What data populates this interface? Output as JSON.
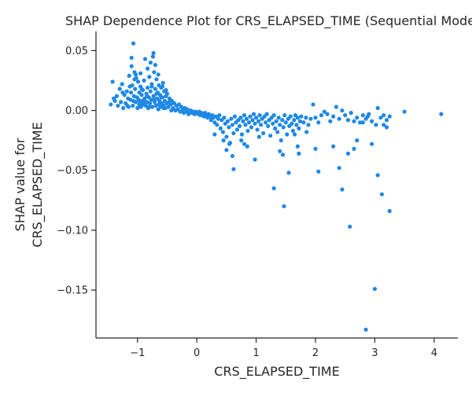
{
  "chart_data": {
    "type": "scatter",
    "title": "SHAP Dependence Plot for CRS_ELAPSED_TIME (Sequential Model)",
    "xlabel": "CRS_ELAPSED_TIME",
    "ylabel_lines": [
      "SHAP value for",
      "CRS_ELAPSED_TIME"
    ],
    "xlim": [
      -1.7,
      4.4
    ],
    "ylim": [
      -0.19,
      0.066
    ],
    "x_ticks": [
      -1,
      0,
      1,
      2,
      3,
      4
    ],
    "x_tick_labels": [
      "−1",
      "0",
      "1",
      "2",
      "3",
      "4"
    ],
    "y_ticks": [
      0.05,
      0.0,
      -0.05,
      -0.1,
      -0.15
    ],
    "y_tick_labels": [
      "0.05",
      "0.00",
      "−0.05",
      "−0.10",
      "−0.15"
    ],
    "grid": false,
    "legend": "none",
    "point_color": "#1e88e5",
    "points": [
      [
        -1.45,
        0.005
      ],
      [
        -1.42,
        0.024
      ],
      [
        -1.38,
        0.008
      ],
      [
        -1.35,
        0.012
      ],
      [
        -1.33,
        0.004
      ],
      [
        -1.3,
        0.018
      ],
      [
        -1.28,
        0.007
      ],
      [
        -1.26,
        0.022
      ],
      [
        -1.24,
        0.002
      ],
      [
        -1.22,
        0.013
      ],
      [
        -1.2,
        0.006
      ],
      [
        -1.18,
        0.016
      ],
      [
        -1.16,
        0.01
      ],
      [
        -1.15,
        0.003
      ],
      [
        -1.14,
        0.029
      ],
      [
        -1.12,
        0.009
      ],
      [
        -1.11,
        0.015
      ],
      [
        -1.1,
        0.037
      ],
      [
        -1.09,
        0.021
      ],
      [
        -1.08,
        0.004
      ],
      [
        -1.07,
        0.056
      ],
      [
        -1.06,
        0.012
      ],
      [
        -1.05,
        0.032
      ],
      [
        -1.04,
        0.018
      ],
      [
        -1.03,
        0.007
      ],
      [
        -1.02,
        0.027
      ],
      [
        -1.01,
        0.011
      ],
      [
        -1.0,
        0.002
      ],
      [
        -0.99,
        0.024
      ],
      [
        -0.98,
        0.009
      ],
      [
        -0.97,
        0.015
      ],
      [
        -0.96,
        0.006
      ],
      [
        -0.95,
        0.02
      ],
      [
        -0.94,
        0.003
      ],
      [
        -0.93,
        0.013
      ],
      [
        -0.92,
        0.008
      ],
      [
        -0.91,
        0.017
      ],
      [
        -0.9,
        0.005
      ],
      [
        -0.89,
        0.025
      ],
      [
        -0.88,
        0.01
      ],
      [
        -0.87,
        0.043
      ],
      [
        -0.86,
        0.004
      ],
      [
        -0.85,
        0.014
      ],
      [
        -0.84,
        0.007
      ],
      [
        -0.83,
        0.019
      ],
      [
        -0.82,
        0.002
      ],
      [
        -0.81,
        0.011
      ],
      [
        -0.8,
        0.028
      ],
      [
        -0.79,
        0.006
      ],
      [
        -0.78,
        0.016
      ],
      [
        -0.77,
        0.009
      ],
      [
        -0.76,
        0.022
      ],
      [
        -0.75,
        0.003
      ],
      [
        -0.74,
        0.045
      ],
      [
        -0.73,
        0.012
      ],
      [
        -0.72,
        0.032
      ],
      [
        -0.71,
        0.007
      ],
      [
        -0.7,
        0.018
      ],
      [
        -0.69,
        0.004
      ],
      [
        -0.68,
        0.026
      ],
      [
        -0.67,
        0.01
      ],
      [
        -0.66,
        0.015
      ],
      [
        -0.65,
        0.001
      ],
      [
        -0.64,
        0.021
      ],
      [
        -0.63,
        0.008
      ],
      [
        -0.62,
        0.013
      ],
      [
        -0.61,
        0.003
      ],
      [
        -0.6,
        0.019
      ],
      [
        -0.59,
        0.006
      ],
      [
        -0.58,
        0.011
      ],
      [
        -0.57,
        0.023
      ],
      [
        -0.56,
        0.004
      ],
      [
        -0.55,
        0.016
      ],
      [
        -0.54,
        0.008
      ],
      [
        -0.53,
        0.002
      ],
      [
        -0.52,
        0.012
      ],
      [
        -0.51,
        0.006
      ],
      [
        -0.5,
        0.014
      ],
      [
        -0.48,
        0.003
      ],
      [
        -0.46,
        0.01
      ],
      [
        -0.44,
        0.005
      ],
      [
        -0.42,
        0.008
      ],
      [
        -0.4,
        0.002
      ],
      [
        -0.38,
        0.006
      ],
      [
        -0.36,
        0.0
      ],
      [
        -0.34,
        0.004
      ],
      [
        -0.32,
        0.001
      ],
      [
        -0.3,
        0.005
      ],
      [
        -0.28,
        -0.001
      ],
      [
        -0.26,
        0.003
      ],
      [
        -1.4,
        0.01
      ],
      [
        -1.25,
        0.015
      ],
      [
        -1.17,
        0.004
      ],
      [
        -1.13,
        0.02
      ],
      [
        -1.07,
        0.008
      ],
      [
        -1.03,
        0.03
      ],
      [
        -0.97,
        0.005
      ],
      [
        -0.93,
        0.018
      ],
      [
        -0.88,
        0.007
      ],
      [
        -0.84,
        0.012
      ],
      [
        -0.8,
        0.003
      ],
      [
        -0.76,
        0.02
      ],
      [
        -0.72,
        0.009
      ],
      [
        -0.68,
        0.014
      ],
      [
        -0.64,
        0.005
      ],
      [
        -0.6,
        0.011
      ],
      [
        -0.56,
        0.002
      ],
      [
        -0.52,
        0.017
      ],
      [
        -0.47,
        0.007
      ],
      [
        -0.43,
        0.0
      ],
      [
        -1.1,
        0.044
      ],
      [
        -1.05,
        0.026
      ],
      [
        -0.83,
        0.035
      ],
      [
        -0.73,
        0.048
      ],
      [
        -0.78,
        0.04
      ],
      [
        -0.95,
        0.031
      ],
      [
        -0.65,
        0.03
      ],
      [
        -0.58,
        0.02
      ],
      [
        -0.7,
        0.038
      ],
      [
        -0.24,
        0.0
      ],
      [
        -0.22,
        -0.002
      ],
      [
        -0.2,
        0.002
      ],
      [
        -0.18,
        -0.001
      ],
      [
        -0.16,
        0.001
      ],
      [
        -0.14,
        -0.003
      ],
      [
        -0.12,
        -0.001
      ],
      [
        -0.1,
        0.0
      ],
      [
        -0.08,
        -0.002
      ],
      [
        -0.06,
        -0.001
      ],
      [
        -0.04,
        -0.003
      ],
      [
        -0.02,
        -0.001
      ],
      [
        0.0,
        -0.002
      ],
      [
        0.02,
        -0.003
      ],
      [
        0.04,
        -0.001
      ],
      [
        0.06,
        -0.004
      ],
      [
        0.08,
        -0.002
      ],
      [
        0.1,
        -0.003
      ],
      [
        0.12,
        -0.005
      ],
      [
        0.14,
        -0.002
      ],
      [
        0.16,
        -0.004
      ],
      [
        0.18,
        -0.006
      ],
      [
        0.2,
        -0.003
      ],
      [
        0.22,
        -0.005
      ],
      [
        0.24,
        -0.008
      ],
      [
        0.26,
        -0.004
      ],
      [
        0.28,
        -0.006
      ],
      [
        0.3,
        -0.01
      ],
      [
        0.32,
        -0.005
      ],
      [
        0.34,
        -0.012
      ],
      [
        0.36,
        -0.007
      ],
      [
        0.38,
        -0.004
      ],
      [
        0.4,
        -0.015
      ],
      [
        0.42,
        -0.008
      ],
      [
        0.44,
        -0.018
      ],
      [
        0.46,
        -0.006
      ],
      [
        0.48,
        -0.011
      ],
      [
        0.5,
        -0.022
      ],
      [
        0.52,
        -0.009
      ],
      [
        0.54,
        -0.014
      ],
      [
        0.56,
        -0.027
      ],
      [
        0.58,
        -0.007
      ],
      [
        0.6,
        -0.012
      ],
      [
        0.62,
        -0.019
      ],
      [
        0.64,
        -0.005
      ],
      [
        0.66,
        -0.01
      ],
      [
        0.68,
        -0.016
      ],
      [
        0.7,
        -0.008
      ],
      [
        0.72,
        -0.013
      ],
      [
        0.74,
        -0.006
      ],
      [
        0.76,
        -0.02
      ],
      [
        0.78,
        -0.009
      ],
      [
        0.8,
        -0.004
      ],
      [
        0.82,
        -0.012
      ],
      [
        0.84,
        -0.007
      ],
      [
        0.86,
        -0.017
      ],
      [
        0.88,
        -0.01
      ],
      [
        0.9,
        -0.005
      ],
      [
        0.92,
        -0.014
      ],
      [
        0.94,
        -0.008
      ],
      [
        0.96,
        -0.003
      ],
      [
        0.98,
        -0.011
      ],
      [
        1.0,
        -0.006
      ],
      [
        1.02,
        -0.016
      ],
      [
        1.04,
        -0.009
      ],
      [
        1.06,
        -0.004
      ],
      [
        1.08,
        -0.012
      ],
      [
        1.1,
        -0.007
      ],
      [
        1.12,
        -0.019
      ],
      [
        1.14,
        -0.005
      ],
      [
        1.16,
        -0.01
      ],
      [
        1.18,
        -0.003
      ],
      [
        1.2,
        -0.013
      ],
      [
        1.22,
        -0.008
      ],
      [
        1.24,
        -0.021
      ],
      [
        1.26,
        -0.006
      ],
      [
        1.28,
        -0.011
      ],
      [
        1.3,
        -0.004
      ],
      [
        1.32,
        -0.015
      ],
      [
        1.34,
        -0.009
      ],
      [
        1.36,
        -0.018
      ],
      [
        1.38,
        -0.006
      ],
      [
        1.4,
        -0.012
      ],
      [
        1.42,
        -0.025
      ],
      [
        1.44,
        -0.008
      ],
      [
        1.46,
        -0.014
      ],
      [
        1.48,
        -0.004
      ],
      [
        1.5,
        -0.01
      ],
      [
        1.52,
        -0.02
      ],
      [
        1.54,
        -0.007
      ],
      [
        1.56,
        -0.013
      ],
      [
        1.58,
        -0.005
      ],
      [
        1.6,
        -0.011
      ],
      [
        1.62,
        -0.017
      ],
      [
        1.64,
        -0.008
      ],
      [
        1.66,
        -0.004
      ],
      [
        1.68,
        -0.012
      ],
      [
        1.7,
        -0.006
      ],
      [
        1.72,
        -0.015
      ],
      [
        1.74,
        -0.009
      ],
      [
        1.76,
        -0.005
      ],
      [
        1.8,
        -0.01
      ],
      [
        1.84,
        -0.006
      ],
      [
        1.88,
        -0.012
      ],
      [
        1.92,
        -0.007
      ],
      [
        1.96,
        0.005
      ],
      [
        2.0,
        -0.006
      ],
      [
        2.05,
        -0.01
      ],
      [
        2.1,
        -0.004
      ],
      [
        2.15,
        -0.001
      ],
      [
        2.2,
        -0.003
      ],
      [
        2.25,
        -0.009
      ],
      [
        2.3,
        -0.005
      ],
      [
        2.35,
        0.003
      ],
      [
        2.4,
        -0.007
      ],
      [
        2.45,
        0.0
      ],
      [
        2.5,
        -0.004
      ],
      [
        2.55,
        -0.008
      ],
      [
        2.6,
        -0.002
      ],
      [
        2.65,
        -0.009
      ],
      [
        2.7,
        -0.006
      ],
      [
        2.75,
        -0.01
      ],
      [
        2.8,
        -0.004
      ],
      [
        2.85,
        -0.007
      ],
      [
        2.9,
        -0.003
      ],
      [
        2.95,
        -0.009
      ],
      [
        3.05,
        0.002
      ],
      [
        3.1,
        -0.006
      ],
      [
        3.15,
        -0.012
      ],
      [
        3.2,
        -0.008
      ],
      [
        3.25,
        -0.005
      ],
      [
        3.5,
        -0.001
      ],
      [
        4.12,
        -0.003
      ],
      [
        0.3,
        -0.02
      ],
      [
        0.45,
        -0.025
      ],
      [
        0.5,
        -0.033
      ],
      [
        0.55,
        -0.028
      ],
      [
        0.62,
        -0.049
      ],
      [
        0.6,
        -0.038
      ],
      [
        0.75,
        -0.025
      ],
      [
        0.85,
        -0.03
      ],
      [
        0.8,
        -0.028
      ],
      [
        0.98,
        -0.041
      ],
      [
        1.05,
        -0.022
      ],
      [
        1.3,
        -0.065
      ],
      [
        1.4,
        -0.034
      ],
      [
        1.45,
        -0.037
      ],
      [
        1.47,
        -0.08
      ],
      [
        1.55,
        -0.052
      ],
      [
        1.65,
        -0.02
      ],
      [
        1.7,
        -0.03
      ],
      [
        1.72,
        -0.036
      ],
      [
        1.85,
        -0.018
      ],
      [
        2.0,
        -0.032
      ],
      [
        2.05,
        -0.051
      ],
      [
        2.3,
        -0.03
      ],
      [
        2.4,
        -0.048
      ],
      [
        2.45,
        -0.066
      ],
      [
        2.55,
        -0.036
      ],
      [
        2.58,
        -0.097
      ],
      [
        2.65,
        -0.032
      ],
      [
        2.7,
        -0.025
      ],
      [
        2.8,
        -0.01
      ],
      [
        2.85,
        -0.183
      ],
      [
        2.88,
        -0.005
      ],
      [
        2.95,
        -0.028
      ],
      [
        3.0,
        -0.149
      ],
      [
        3.02,
        -0.012
      ],
      [
        3.05,
        -0.054
      ],
      [
        3.12,
        -0.07
      ],
      [
        3.2,
        -0.014
      ],
      [
        3.25,
        -0.084
      ],
      [
        3.15,
        -0.004
      ]
    ]
  }
}
